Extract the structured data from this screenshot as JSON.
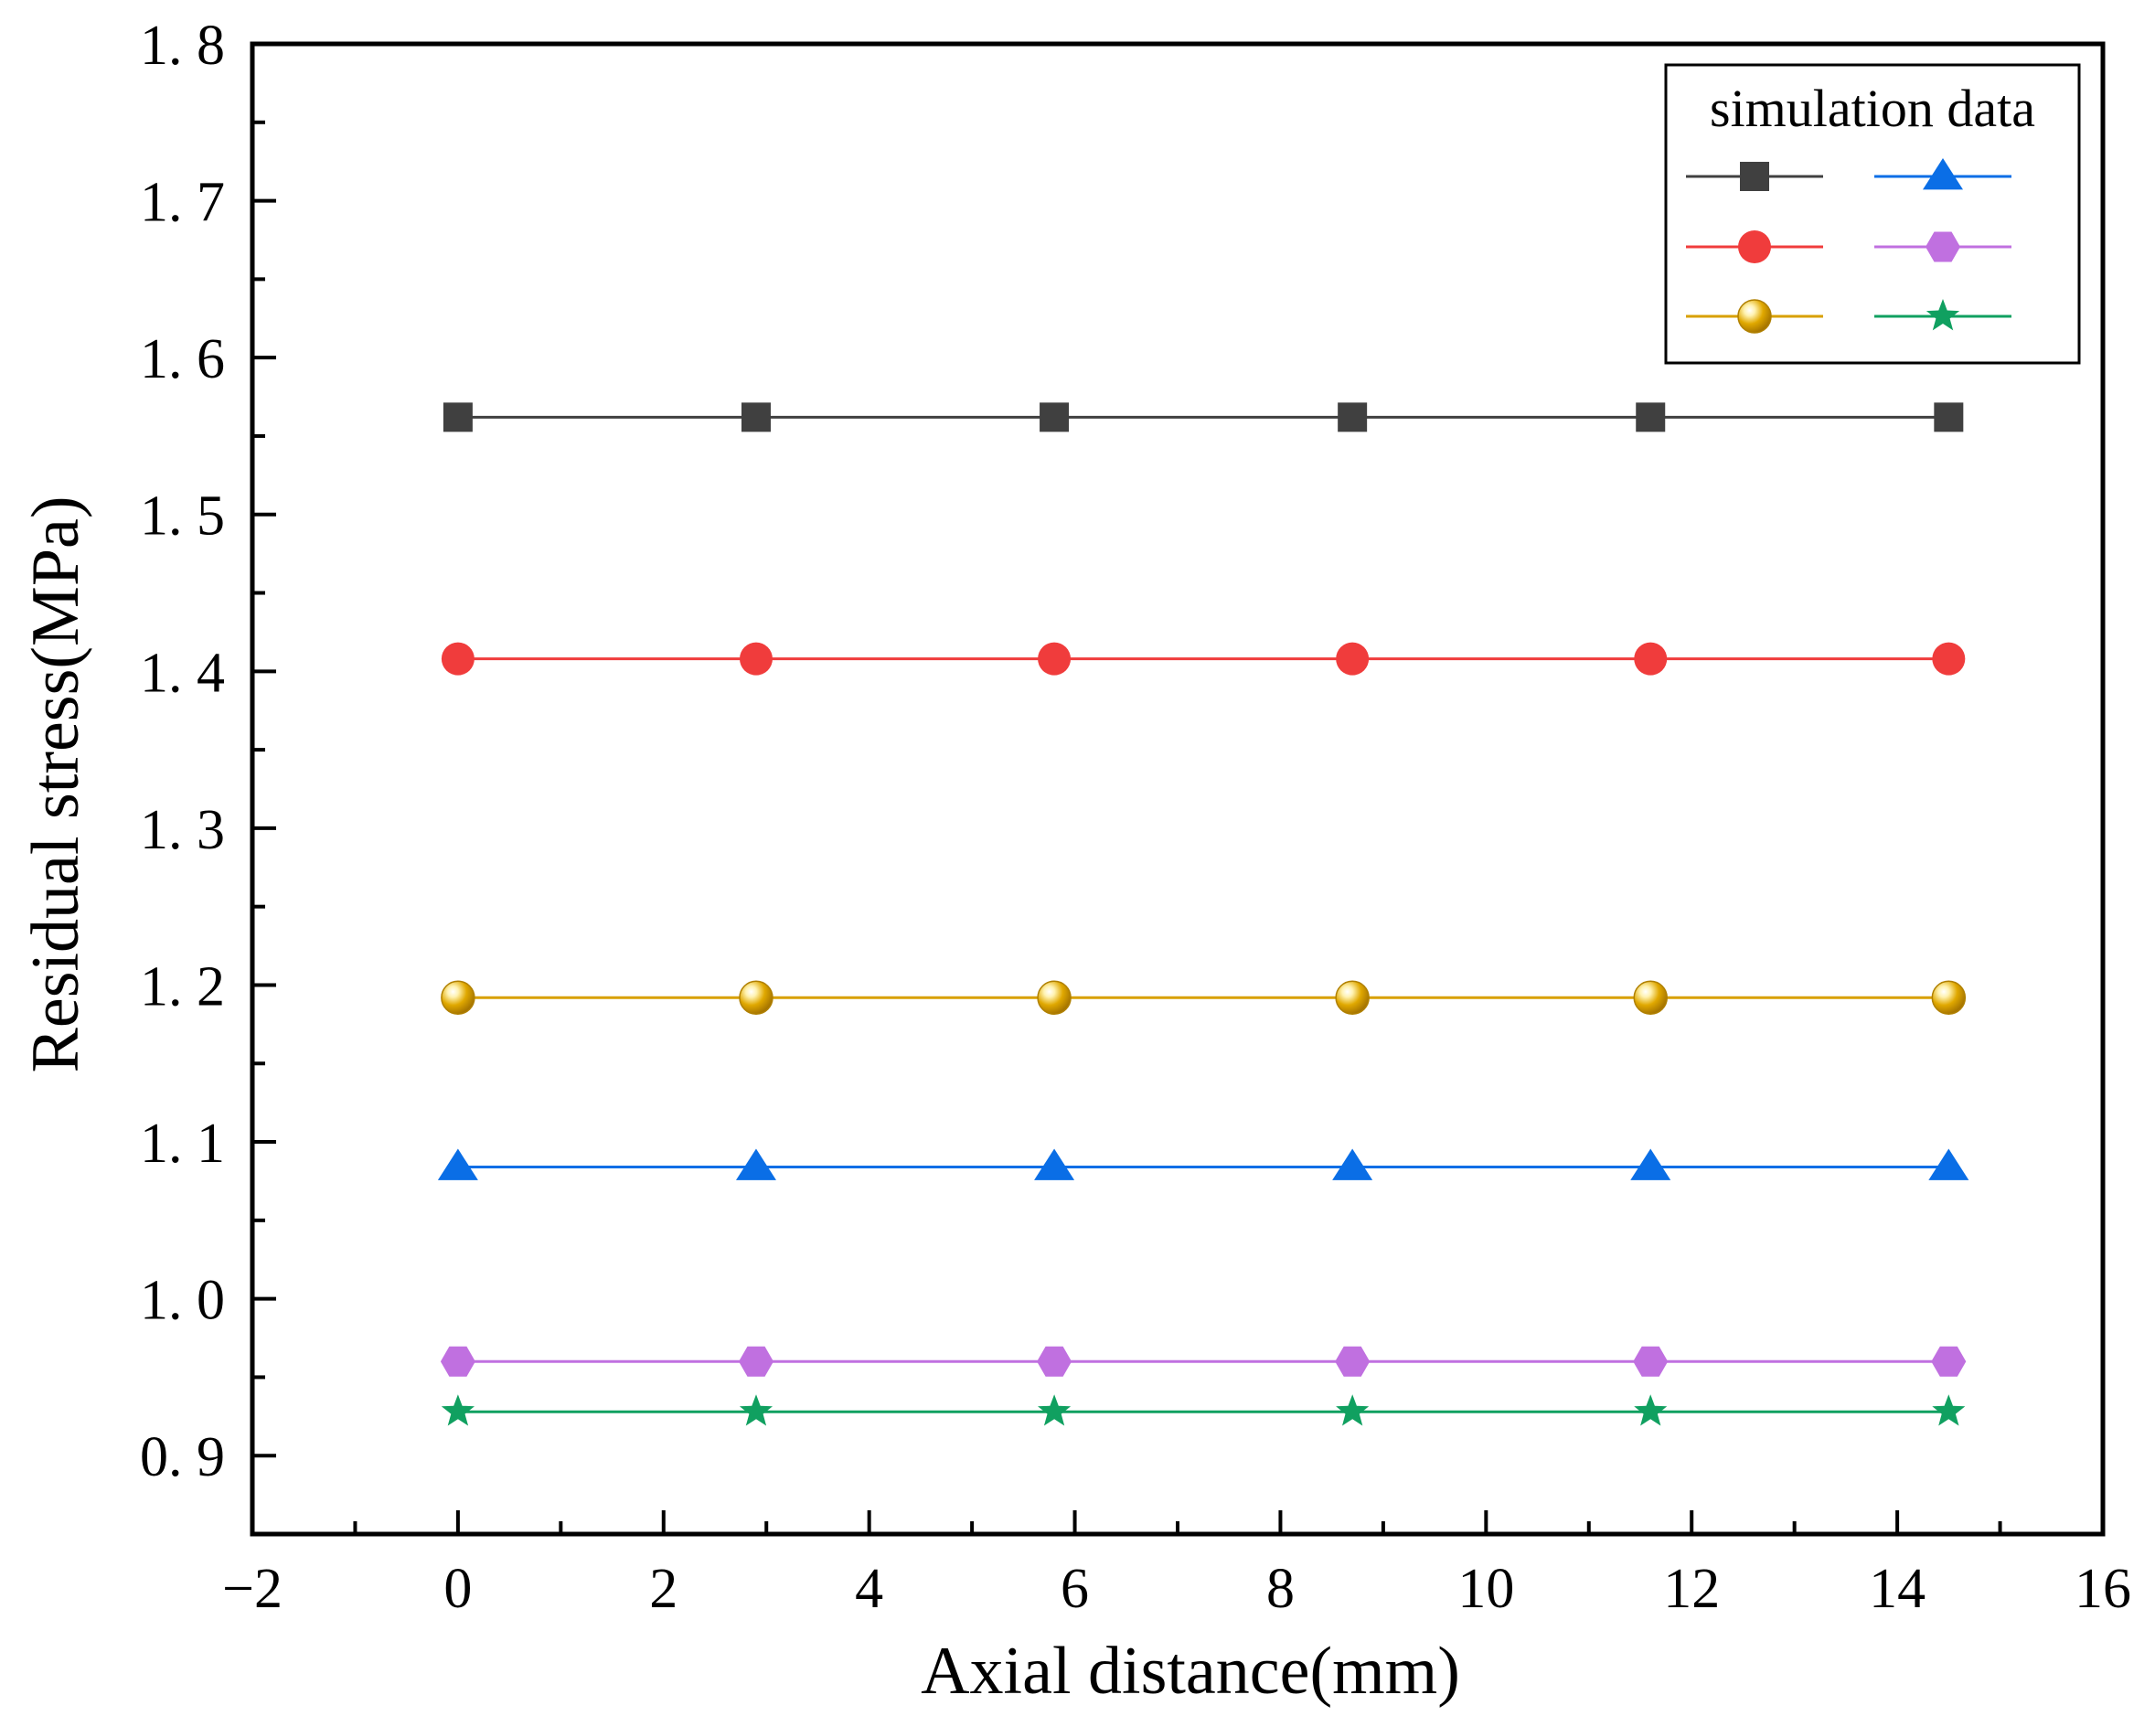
{
  "chart_data": {
    "type": "line",
    "xlabel": "Axial distance(mm)",
    "ylabel": "Residual stress(MPa)",
    "xlim": [
      -2,
      16
    ],
    "ylim": [
      0.85,
      1.8
    ],
    "xticks": [
      -2,
      0,
      2,
      4,
      6,
      8,
      10,
      12,
      14,
      16
    ],
    "xtick_labels": [
      "−2",
      "0",
      "2",
      "4",
      "6",
      "8",
      "10",
      "12",
      "14",
      "16"
    ],
    "yticks": [
      0.9,
      1.0,
      1.1,
      1.2,
      1.3,
      1.4,
      1.5,
      1.6,
      1.7,
      1.8
    ],
    "ytick_labels": [
      "0. 9",
      "1. 0",
      "1. 1",
      "1. 2",
      "1. 3",
      "1. 4",
      "1. 5",
      "1. 6",
      "1. 7",
      "1. 8"
    ],
    "grid": false,
    "legend": {
      "title": "simulation data",
      "position": "top-right",
      "columns": 2
    },
    "x": [
      0,
      2.9,
      5.8,
      8.7,
      11.6,
      14.5
    ],
    "series": [
      {
        "values": [
          1.562,
          1.562,
          1.562,
          1.562,
          1.562,
          1.562
        ],
        "color": "#404040",
        "marker": "square"
      },
      {
        "values": [
          1.408,
          1.408,
          1.408,
          1.408,
          1.408,
          1.408
        ],
        "color": "#f03c3c",
        "marker": "circle"
      },
      {
        "values": [
          1.192,
          1.192,
          1.192,
          1.192,
          1.192,
          1.192
        ],
        "color": "#d8a000",
        "marker": "sphere"
      },
      {
        "values": [
          1.084,
          1.084,
          1.084,
          1.084,
          1.084,
          1.084
        ],
        "color": "#0a6ee6",
        "marker": "triangle"
      },
      {
        "values": [
          0.96,
          0.96,
          0.96,
          0.96,
          0.96,
          0.96
        ],
        "color": "#c070e0",
        "marker": "hexagon"
      },
      {
        "values": [
          0.928,
          0.928,
          0.928,
          0.928,
          0.928,
          0.928
        ],
        "color": "#10a060",
        "marker": "star"
      }
    ]
  }
}
